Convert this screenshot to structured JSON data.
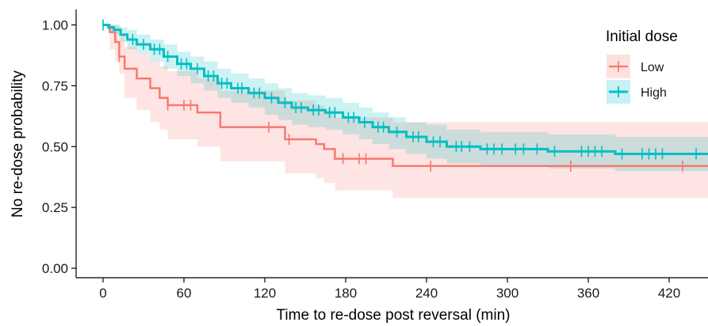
{
  "chart_data": {
    "type": "line",
    "subtype": "kaplan-meier step curve with confidence bands and censor marks",
    "xlabel": "Time to re-dose post reversal (min)",
    "ylabel": "No re-dose probability",
    "xlim": [
      -20,
      450
    ],
    "ylim": [
      0,
      1
    ],
    "x_ticks": [
      "0",
      "60",
      "120",
      "180",
      "240",
      "300",
      "360",
      "420"
    ],
    "x_tick_values": [
      0,
      60,
      120,
      180,
      240,
      300,
      360,
      420
    ],
    "y_ticks": [
      "0.00",
      "0.25",
      "0.50",
      "0.75",
      "1.00"
    ],
    "y_tick_values": [
      0,
      0.25,
      0.5,
      0.75,
      1.0
    ],
    "grid": false,
    "legend": {
      "title": "Initial dose",
      "position": "top-right"
    },
    "series": [
      {
        "name": "Low",
        "color": "#F8766D",
        "band_color": "#F8766D",
        "steps": [
          [
            0,
            1.0
          ],
          [
            5,
            0.97
          ],
          [
            9,
            0.93
          ],
          [
            12,
            0.87
          ],
          [
            16,
            0.82
          ],
          [
            25,
            0.78
          ],
          [
            35,
            0.74
          ],
          [
            42,
            0.7
          ],
          [
            48,
            0.67
          ],
          [
            70,
            0.64
          ],
          [
            87,
            0.58
          ],
          [
            135,
            0.53
          ],
          [
            158,
            0.51
          ],
          [
            164,
            0.49
          ],
          [
            172,
            0.45
          ],
          [
            215,
            0.42
          ],
          [
            450,
            0.42
          ]
        ],
        "lower": [
          [
            0,
            1.0
          ],
          [
            5,
            0.9
          ],
          [
            9,
            0.85
          ],
          [
            12,
            0.8
          ],
          [
            16,
            0.7
          ],
          [
            25,
            0.65
          ],
          [
            35,
            0.6
          ],
          [
            42,
            0.57
          ],
          [
            48,
            0.53
          ],
          [
            70,
            0.5
          ],
          [
            87,
            0.44
          ],
          [
            135,
            0.39
          ],
          [
            158,
            0.37
          ],
          [
            164,
            0.35
          ],
          [
            172,
            0.32
          ],
          [
            215,
            0.29
          ],
          [
            450,
            0.29
          ]
        ],
        "upper": [
          [
            0,
            1.0
          ],
          [
            5,
            1.0
          ],
          [
            9,
            1.0
          ],
          [
            12,
            0.96
          ],
          [
            16,
            0.91
          ],
          [
            25,
            0.88
          ],
          [
            35,
            0.85
          ],
          [
            42,
            0.83
          ],
          [
            48,
            0.81
          ],
          [
            70,
            0.78
          ],
          [
            87,
            0.73
          ],
          [
            135,
            0.69
          ],
          [
            158,
            0.67
          ],
          [
            164,
            0.65
          ],
          [
            172,
            0.62
          ],
          [
            215,
            0.6
          ],
          [
            450,
            0.6
          ]
        ],
        "censored": [
          [
            12,
            0.87
          ],
          [
            48,
            0.67
          ],
          [
            60,
            0.67
          ],
          [
            65,
            0.67
          ],
          [
            123,
            0.58
          ],
          [
            138,
            0.53
          ],
          [
            178,
            0.45
          ],
          [
            190,
            0.45
          ],
          [
            195,
            0.45
          ],
          [
            243,
            0.42
          ],
          [
            347,
            0.42
          ],
          [
            430,
            0.42
          ]
        ]
      },
      {
        "name": "High",
        "color": "#00BFC4",
        "band_color": "#00BFC4",
        "steps": [
          [
            0,
            1.0
          ],
          [
            4,
            0.99
          ],
          [
            8,
            0.98
          ],
          [
            13,
            0.96
          ],
          [
            18,
            0.94
          ],
          [
            25,
            0.92
          ],
          [
            35,
            0.9
          ],
          [
            45,
            0.87
          ],
          [
            55,
            0.84
          ],
          [
            65,
            0.82
          ],
          [
            75,
            0.79
          ],
          [
            85,
            0.76
          ],
          [
            95,
            0.74
          ],
          [
            108,
            0.72
          ],
          [
            120,
            0.7
          ],
          [
            130,
            0.68
          ],
          [
            140,
            0.66
          ],
          [
            152,
            0.65
          ],
          [
            165,
            0.64
          ],
          [
            178,
            0.62
          ],
          [
            190,
            0.6
          ],
          [
            200,
            0.58
          ],
          [
            212,
            0.56
          ],
          [
            225,
            0.54
          ],
          [
            240,
            0.52
          ],
          [
            255,
            0.5
          ],
          [
            280,
            0.49
          ],
          [
            330,
            0.48
          ],
          [
            380,
            0.47
          ],
          [
            450,
            0.47
          ]
        ],
        "lower": [
          [
            0,
            1.0
          ],
          [
            4,
            0.97
          ],
          [
            8,
            0.96
          ],
          [
            13,
            0.93
          ],
          [
            18,
            0.9
          ],
          [
            25,
            0.88
          ],
          [
            35,
            0.85
          ],
          [
            45,
            0.82
          ],
          [
            55,
            0.79
          ],
          [
            65,
            0.76
          ],
          [
            75,
            0.73
          ],
          [
            85,
            0.7
          ],
          [
            95,
            0.68
          ],
          [
            108,
            0.66
          ],
          [
            120,
            0.63
          ],
          [
            130,
            0.61
          ],
          [
            140,
            0.59
          ],
          [
            152,
            0.58
          ],
          [
            165,
            0.57
          ],
          [
            178,
            0.55
          ],
          [
            190,
            0.53
          ],
          [
            200,
            0.51
          ],
          [
            212,
            0.49
          ],
          [
            225,
            0.47
          ],
          [
            240,
            0.45
          ],
          [
            255,
            0.43
          ],
          [
            280,
            0.42
          ],
          [
            330,
            0.41
          ],
          [
            380,
            0.4
          ],
          [
            450,
            0.4
          ]
        ],
        "upper": [
          [
            0,
            1.0
          ],
          [
            4,
            1.0
          ],
          [
            8,
            1.0
          ],
          [
            13,
            0.99
          ],
          [
            18,
            0.98
          ],
          [
            25,
            0.96
          ],
          [
            35,
            0.94
          ],
          [
            45,
            0.92
          ],
          [
            55,
            0.89
          ],
          [
            65,
            0.87
          ],
          [
            75,
            0.85
          ],
          [
            85,
            0.82
          ],
          [
            95,
            0.8
          ],
          [
            108,
            0.78
          ],
          [
            120,
            0.76
          ],
          [
            130,
            0.74
          ],
          [
            140,
            0.72
          ],
          [
            152,
            0.71
          ],
          [
            165,
            0.7
          ],
          [
            178,
            0.68
          ],
          [
            190,
            0.66
          ],
          [
            200,
            0.64
          ],
          [
            212,
            0.62
          ],
          [
            225,
            0.6
          ],
          [
            240,
            0.59
          ],
          [
            255,
            0.57
          ],
          [
            280,
            0.56
          ],
          [
            330,
            0.55
          ],
          [
            380,
            0.54
          ],
          [
            450,
            0.54
          ]
        ],
        "censored": [
          [
            0,
            1.0
          ],
          [
            22,
            0.94
          ],
          [
            30,
            0.92
          ],
          [
            38,
            0.9
          ],
          [
            42,
            0.9
          ],
          [
            48,
            0.87
          ],
          [
            58,
            0.84
          ],
          [
            62,
            0.84
          ],
          [
            70,
            0.82
          ],
          [
            78,
            0.79
          ],
          [
            82,
            0.79
          ],
          [
            88,
            0.76
          ],
          [
            92,
            0.76
          ],
          [
            100,
            0.74
          ],
          [
            103,
            0.74
          ],
          [
            112,
            0.72
          ],
          [
            116,
            0.72
          ],
          [
            125,
            0.7
          ],
          [
            135,
            0.68
          ],
          [
            143,
            0.66
          ],
          [
            147,
            0.66
          ],
          [
            156,
            0.65
          ],
          [
            160,
            0.65
          ],
          [
            168,
            0.64
          ],
          [
            172,
            0.64
          ],
          [
            182,
            0.62
          ],
          [
            186,
            0.62
          ],
          [
            194,
            0.6
          ],
          [
            204,
            0.58
          ],
          [
            208,
            0.58
          ],
          [
            218,
            0.56
          ],
          [
            230,
            0.54
          ],
          [
            234,
            0.54
          ],
          [
            245,
            0.52
          ],
          [
            250,
            0.52
          ],
          [
            262,
            0.5
          ],
          [
            266,
            0.5
          ],
          [
            272,
            0.5
          ],
          [
            285,
            0.49
          ],
          [
            290,
            0.49
          ],
          [
            296,
            0.49
          ],
          [
            306,
            0.49
          ],
          [
            312,
            0.49
          ],
          [
            322,
            0.49
          ],
          [
            335,
            0.48
          ],
          [
            355,
            0.48
          ],
          [
            360,
            0.48
          ],
          [
            365,
            0.48
          ],
          [
            370,
            0.48
          ],
          [
            385,
            0.47
          ],
          [
            400,
            0.47
          ],
          [
            405,
            0.47
          ],
          [
            410,
            0.47
          ],
          [
            415,
            0.47
          ],
          [
            440,
            0.47
          ]
        ]
      }
    ]
  }
}
